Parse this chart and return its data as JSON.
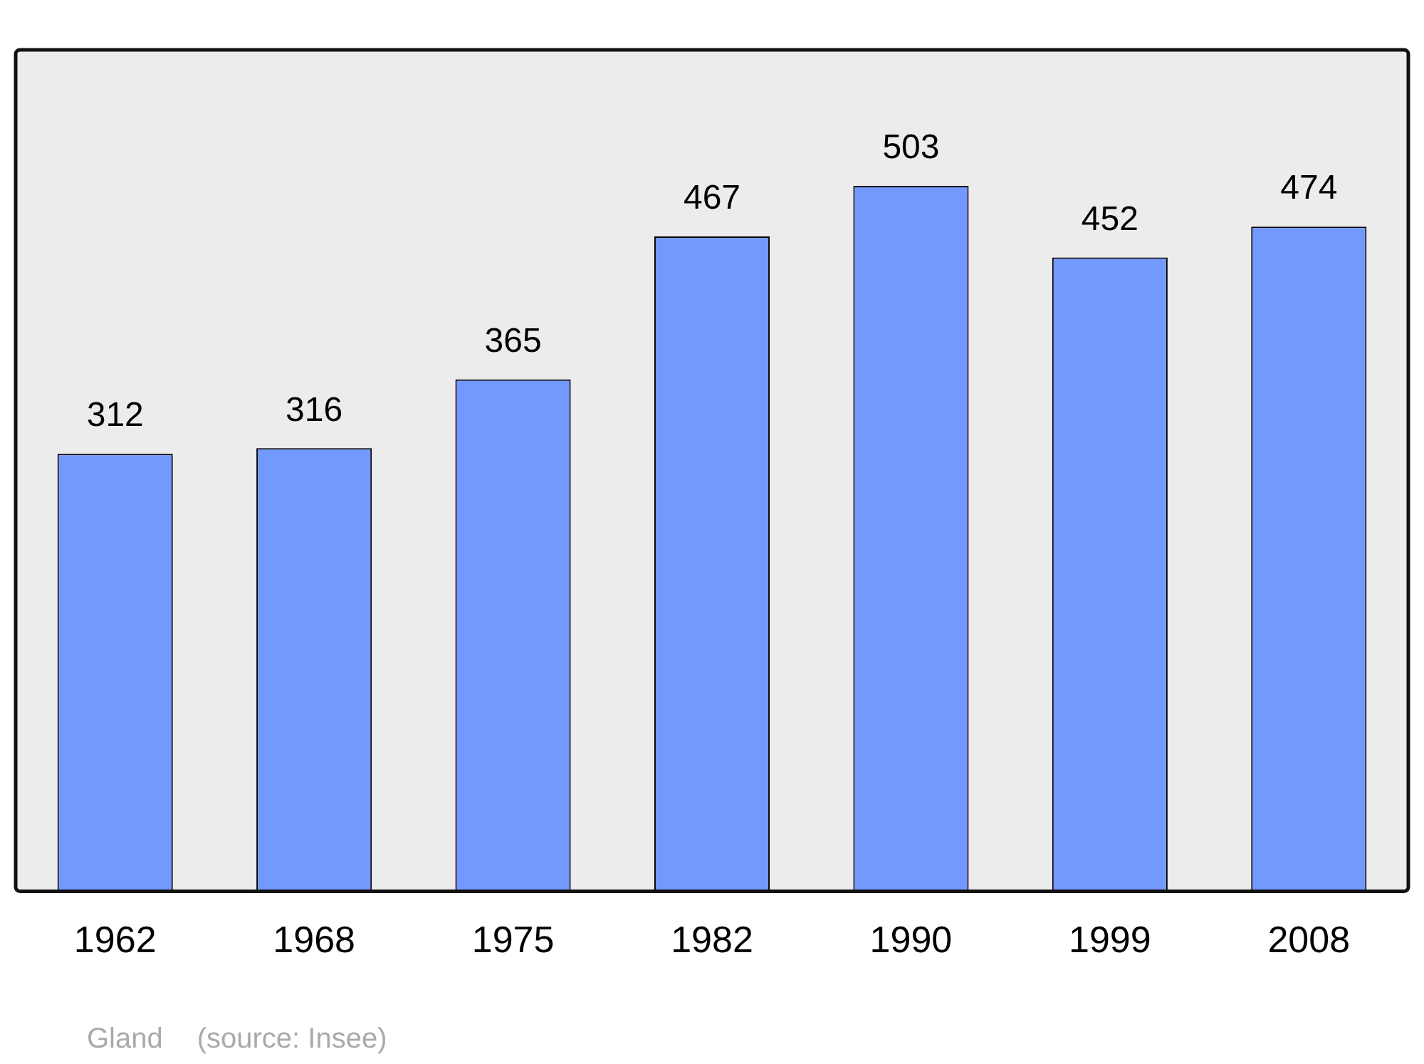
{
  "chart_data": {
    "type": "bar",
    "categories": [
      "1962",
      "1968",
      "1975",
      "1982",
      "1990",
      "1999",
      "2008"
    ],
    "values": [
      312,
      316,
      365,
      467,
      503,
      452,
      474
    ],
    "color": "#7399ff",
    "data_labels": true,
    "grid": false,
    "legend": false,
    "annotations": [
      "Gland",
      "(source: Insee)"
    ]
  }
}
